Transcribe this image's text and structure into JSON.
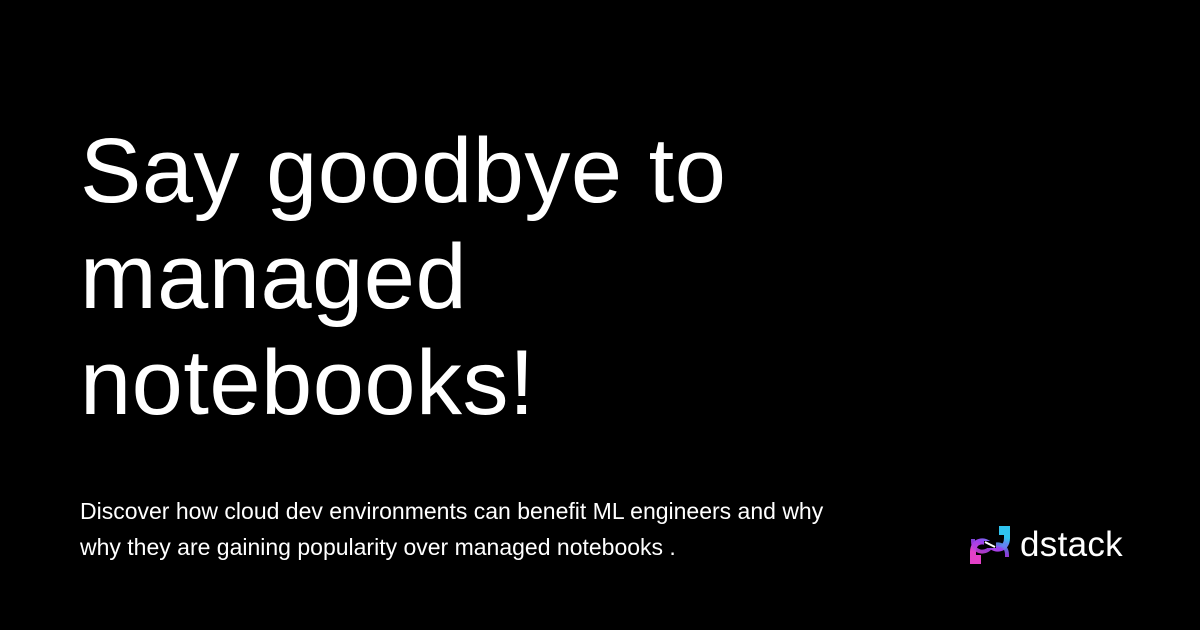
{
  "headline": {
    "lines": [
      "Say goodbye to",
      "managed",
      "notebooks!"
    ]
  },
  "description": {
    "lines": [
      "Discover how cloud dev environments can benefit ML engineers and why",
      "why they are gaining popularity over managed notebooks ."
    ]
  },
  "brand": {
    "name": "dstack",
    "icon": "dstack-logo-icon",
    "colors": {
      "pink": "#e341c8",
      "purple": "#9a40f0",
      "cyan": "#2fc4ef"
    }
  },
  "colors": {
    "background": "#000000",
    "text": "#ffffff"
  }
}
